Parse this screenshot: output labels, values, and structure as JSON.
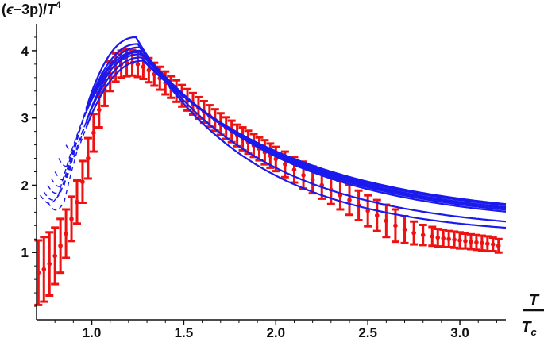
{
  "chart_data": {
    "type": "line",
    "title": "",
    "ylabel": {
      "open": "(",
      "epsilon": "ϵ",
      "minus_p": "−3p)/",
      "T": "T",
      "power": "4"
    },
    "xlabel": {
      "numerator": "T",
      "denominator": "T",
      "denominator_sub": "c"
    },
    "xlim": [
      0.7,
      3.25
    ],
    "ylim": [
      0.0,
      4.4
    ],
    "xticks": [
      {
        "value": 1.0,
        "label": "1.0"
      },
      {
        "value": 1.5,
        "label": "1.5"
      },
      {
        "value": 2.0,
        "label": "2.0"
      },
      {
        "value": 2.5,
        "label": "2.5"
      },
      {
        "value": 3.0,
        "label": "3.0"
      }
    ],
    "yticks": [
      {
        "value": 1,
        "label": "1"
      },
      {
        "value": 2,
        "label": "2"
      },
      {
        "value": 3,
        "label": "3"
      },
      {
        "value": 4,
        "label": "4"
      }
    ],
    "grid": false,
    "legend": "none",
    "colors": {
      "data": "#ee1111",
      "curves": "#1a1aee",
      "axis": "#111111"
    },
    "data_points": {
      "name": "",
      "x": [
        0.71,
        0.74,
        0.77,
        0.8,
        0.83,
        0.86,
        0.89,
        0.92,
        0.95,
        0.98,
        1.01,
        1.04,
        1.07,
        1.1,
        1.13,
        1.16,
        1.19,
        1.22,
        1.25,
        1.28,
        1.31,
        1.34,
        1.37,
        1.4,
        1.43,
        1.46,
        1.49,
        1.52,
        1.55,
        1.58,
        1.61,
        1.64,
        1.67,
        1.7,
        1.73,
        1.76,
        1.79,
        1.82,
        1.85,
        1.88,
        1.91,
        1.94,
        1.97,
        2.0,
        2.05,
        2.1,
        2.15,
        2.2,
        2.25,
        2.3,
        2.35,
        2.4,
        2.45,
        2.5,
        2.55,
        2.6,
        2.65,
        2.7,
        2.75,
        2.8,
        2.85,
        2.88,
        2.91,
        2.94,
        2.97,
        3.0,
        3.03,
        3.06,
        3.09,
        3.12,
        3.15,
        3.18,
        3.21
      ],
      "y": [
        0.7,
        0.75,
        0.83,
        0.95,
        1.1,
        1.28,
        1.5,
        1.75,
        2.05,
        2.4,
        2.78,
        3.12,
        3.42,
        3.62,
        3.75,
        3.8,
        3.82,
        3.82,
        3.8,
        3.76,
        3.71,
        3.65,
        3.59,
        3.52,
        3.46,
        3.4,
        3.33,
        3.27,
        3.21,
        3.15,
        3.09,
        3.03,
        2.97,
        2.91,
        2.85,
        2.8,
        2.74,
        2.69,
        2.64,
        2.59,
        2.54,
        2.49,
        2.44,
        2.39,
        2.31,
        2.23,
        2.15,
        2.08,
        2.0,
        1.93,
        1.85,
        1.78,
        1.7,
        1.62,
        1.55,
        1.47,
        1.4,
        1.34,
        1.29,
        1.26,
        1.24,
        1.22,
        1.21,
        1.2,
        1.19,
        1.18,
        1.17,
        1.16,
        1.15,
        1.14,
        1.13,
        1.12,
        1.1
      ],
      "err": [
        0.48,
        0.48,
        0.47,
        0.42,
        0.4,
        0.36,
        0.33,
        0.32,
        0.31,
        0.3,
        0.28,
        0.26,
        0.24,
        0.22,
        0.21,
        0.2,
        0.2,
        0.19,
        0.19,
        0.18,
        0.18,
        0.17,
        0.17,
        0.17,
        0.16,
        0.16,
        0.16,
        0.16,
        0.16,
        0.16,
        0.16,
        0.16,
        0.16,
        0.16,
        0.16,
        0.16,
        0.16,
        0.17,
        0.17,
        0.17,
        0.17,
        0.18,
        0.18,
        0.18,
        0.19,
        0.19,
        0.2,
        0.2,
        0.2,
        0.21,
        0.21,
        0.22,
        0.22,
        0.23,
        0.23,
        0.24,
        0.24,
        0.2,
        0.17,
        0.15,
        0.14,
        0.13,
        0.13,
        0.12,
        0.12,
        0.12,
        0.11,
        0.11,
        0.11,
        0.11,
        0.11,
        0.1,
        0.1
      ]
    },
    "series": [
      {
        "x0": 0.8,
        "peak_x": 1.24,
        "peak_y": 4.2,
        "left": 0.37,
        "right": 0.64,
        "tail": 1.24,
        "start_y": 2.2
      },
      {
        "x0": 0.78,
        "peak_x": 1.25,
        "peak_y": 4.1,
        "left": 0.38,
        "right": 0.7,
        "tail": 1.3,
        "start_y": 2.1
      },
      {
        "x0": 0.76,
        "peak_x": 1.26,
        "peak_y": 4.05,
        "left": 0.39,
        "right": 0.78,
        "tail": 1.4,
        "start_y": 2.0
      },
      {
        "x0": 0.74,
        "peak_x": 1.26,
        "peak_y": 4.0,
        "left": 0.4,
        "right": 0.8,
        "tail": 1.42,
        "start_y": 1.9
      },
      {
        "x0": 0.72,
        "peak_x": 1.27,
        "peak_y": 3.95,
        "left": 0.41,
        "right": 0.82,
        "tail": 1.45,
        "start_y": 1.85
      },
      {
        "x0": 0.82,
        "peak_x": 1.27,
        "peak_y": 3.9,
        "left": 0.38,
        "right": 0.84,
        "tail": 1.47,
        "start_y": 2.4
      },
      {
        "x0": 0.86,
        "peak_x": 1.28,
        "peak_y": 3.85,
        "left": 0.39,
        "right": 0.86,
        "tail": 1.48,
        "start_y": 2.6
      },
      {
        "x0": 0.76,
        "peak_x": 1.26,
        "peak_y": 3.98,
        "left": 0.42,
        "right": 0.81,
        "tail": 1.44,
        "start_y": 1.75
      }
    ]
  }
}
